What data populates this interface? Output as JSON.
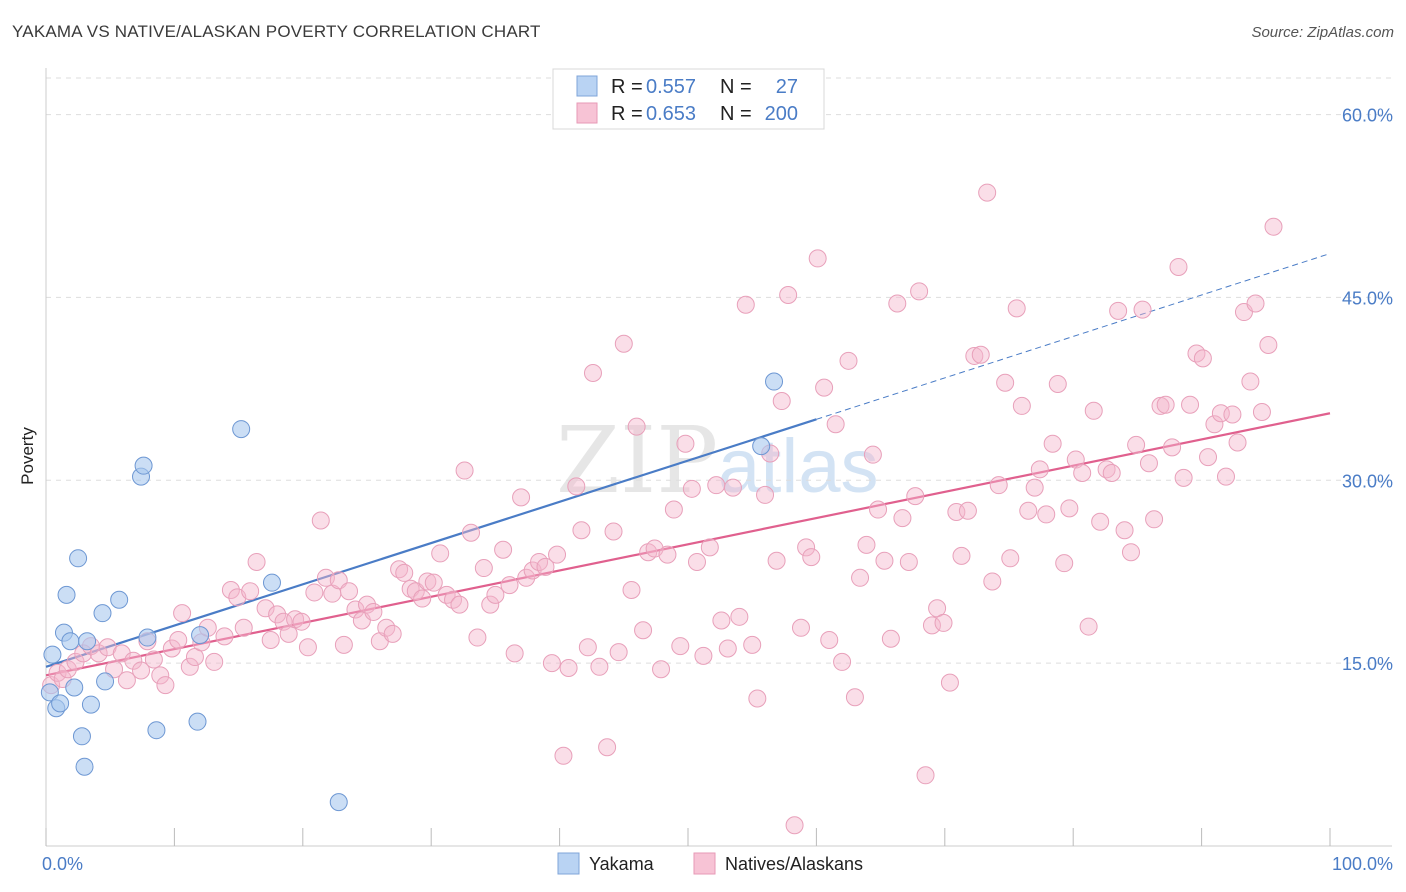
{
  "title": "YAKAMA VS NATIVE/ALASKAN POVERTY CORRELATION CHART",
  "source": "Source: ZipAtlas.com",
  "colors": {
    "yakama": "#4a7cc6",
    "yakama_fill": "#a9c8ef",
    "natives": "#e0608e",
    "natives_fill": "#f5b6cb",
    "axis_text": "#4a7cc6",
    "grid": "#dddddd"
  },
  "legend": {
    "rows": [
      {
        "r_label": "R =",
        "r_value": "0.557",
        "n_label": "N =",
        "n_value": "27"
      },
      {
        "r_label": "R =",
        "r_value": "0.653",
        "n_label": "N =",
        "n_value": "200"
      }
    ]
  },
  "bottom_legend": [
    "Yakama",
    "Natives/Alaskans"
  ],
  "watermark": {
    "zip": "ZIP",
    "atlas": "atlas"
  },
  "chart_data": {
    "type": "scatter",
    "xlabel": "",
    "ylabel": "Poverty",
    "xlim": [
      0,
      100
    ],
    "ylim": [
      0,
      63
    ],
    "x_tick_labels": [
      "0.0%",
      "100.0%"
    ],
    "y_ticks": [
      15,
      30,
      45,
      60
    ],
    "y_tick_labels": [
      "15.0%",
      "30.0%",
      "45.0%",
      "60.0%"
    ],
    "grid": true,
    "legend_position": "top-center",
    "series": [
      {
        "name": "Yakama",
        "trend": {
          "x0": 0,
          "y0": 14.7,
          "x1": 60,
          "y1": 35.0,
          "dash_to_x": 100,
          "dash_to_y": 48.6
        },
        "points": [
          [
            0.3,
            12.6
          ],
          [
            0.5,
            15.7
          ],
          [
            0.8,
            11.3
          ],
          [
            1.1,
            11.7
          ],
          [
            1.4,
            17.5
          ],
          [
            1.6,
            20.6
          ],
          [
            1.9,
            16.8
          ],
          [
            2.2,
            13.0
          ],
          [
            2.5,
            23.6
          ],
          [
            2.8,
            9.0
          ],
          [
            3.0,
            6.5
          ],
          [
            3.2,
            16.8
          ],
          [
            3.5,
            11.6
          ],
          [
            4.4,
            19.1
          ],
          [
            4.6,
            13.5
          ],
          [
            5.7,
            20.2
          ],
          [
            7.4,
            30.3
          ],
          [
            7.6,
            31.2
          ],
          [
            7.9,
            17.1
          ],
          [
            8.6,
            9.5
          ],
          [
            11.8,
            10.2
          ],
          [
            12.0,
            17.3
          ],
          [
            15.2,
            34.2
          ],
          [
            17.6,
            21.6
          ],
          [
            22.8,
            3.6
          ],
          [
            55.7,
            32.8
          ],
          [
            56.7,
            38.1
          ]
        ]
      },
      {
        "name": "Natives/Alaskans",
        "trend": {
          "x0": 0,
          "y0": 14.0,
          "x1": 100,
          "y1": 35.5
        },
        "points": [
          [
            0.4,
            13.2
          ],
          [
            0.9,
            14.2
          ],
          [
            1.3,
            13.7
          ],
          [
            1.7,
            14.5
          ],
          [
            2.3,
            15.1
          ],
          [
            2.9,
            15.8
          ],
          [
            3.5,
            16.4
          ],
          [
            4.1,
            15.8
          ],
          [
            4.8,
            16.3
          ],
          [
            5.3,
            14.5
          ],
          [
            5.9,
            15.8
          ],
          [
            6.3,
            13.6
          ],
          [
            6.8,
            15.2
          ],
          [
            7.4,
            14.4
          ],
          [
            7.9,
            16.8
          ],
          [
            8.4,
            15.3
          ],
          [
            8.9,
            14.0
          ],
          [
            9.3,
            13.2
          ],
          [
            9.8,
            16.2
          ],
          [
            10.3,
            16.9
          ],
          [
            10.6,
            19.1
          ],
          [
            11.2,
            14.7
          ],
          [
            11.6,
            15.5
          ],
          [
            12.1,
            16.7
          ],
          [
            12.6,
            17.9
          ],
          [
            13.1,
            15.1
          ],
          [
            13.9,
            17.2
          ],
          [
            14.4,
            21.0
          ],
          [
            14.9,
            20.4
          ],
          [
            15.4,
            17.9
          ],
          [
            15.9,
            20.9
          ],
          [
            16.4,
            23.3
          ],
          [
            17.1,
            19.5
          ],
          [
            17.5,
            16.9
          ],
          [
            18.0,
            19.0
          ],
          [
            18.5,
            18.4
          ],
          [
            18.9,
            17.4
          ],
          [
            19.4,
            18.6
          ],
          [
            19.9,
            18.4
          ],
          [
            20.4,
            16.3
          ],
          [
            20.9,
            20.8
          ],
          [
            21.4,
            26.7
          ],
          [
            21.8,
            22.0
          ],
          [
            22.3,
            20.7
          ],
          [
            22.8,
            21.8
          ],
          [
            23.2,
            16.5
          ],
          [
            23.6,
            20.9
          ],
          [
            24.1,
            19.4
          ],
          [
            24.6,
            18.5
          ],
          [
            25.0,
            19.8
          ],
          [
            25.5,
            19.2
          ],
          [
            26.0,
            16.8
          ],
          [
            26.5,
            17.9
          ],
          [
            27.0,
            17.4
          ],
          [
            27.5,
            22.7
          ],
          [
            27.9,
            22.4
          ],
          [
            28.4,
            21.1
          ],
          [
            28.8,
            20.9
          ],
          [
            29.3,
            20.3
          ],
          [
            29.7,
            21.7
          ],
          [
            30.2,
            21.6
          ],
          [
            30.7,
            24.0
          ],
          [
            31.2,
            20.6
          ],
          [
            31.7,
            20.2
          ],
          [
            32.2,
            19.8
          ],
          [
            32.6,
            30.8
          ],
          [
            33.1,
            25.7
          ],
          [
            33.6,
            17.1
          ],
          [
            34.1,
            22.8
          ],
          [
            34.6,
            19.8
          ],
          [
            35.0,
            20.6
          ],
          [
            35.6,
            24.3
          ],
          [
            36.1,
            21.4
          ],
          [
            36.5,
            15.8
          ],
          [
            37.0,
            28.6
          ],
          [
            37.4,
            22.0
          ],
          [
            37.9,
            22.6
          ],
          [
            38.4,
            23.3
          ],
          [
            38.9,
            22.9
          ],
          [
            39.4,
            15.0
          ],
          [
            39.8,
            23.9
          ],
          [
            40.3,
            7.4
          ],
          [
            40.7,
            14.6
          ],
          [
            41.3,
            29.5
          ],
          [
            41.7,
            25.9
          ],
          [
            42.2,
            16.3
          ],
          [
            42.6,
            38.8
          ],
          [
            43.1,
            14.7
          ],
          [
            43.7,
            8.1
          ],
          [
            44.2,
            25.8
          ],
          [
            44.6,
            15.9
          ],
          [
            45.0,
            41.2
          ],
          [
            45.6,
            21.0
          ],
          [
            46.0,
            34.4
          ],
          [
            46.5,
            17.7
          ],
          [
            46.9,
            24.1
          ],
          [
            47.4,
            24.4
          ],
          [
            47.9,
            14.5
          ],
          [
            48.4,
            23.9
          ],
          [
            48.9,
            27.6
          ],
          [
            49.4,
            16.4
          ],
          [
            49.8,
            33.0
          ],
          [
            50.3,
            29.3
          ],
          [
            50.7,
            23.3
          ],
          [
            51.2,
            15.6
          ],
          [
            51.7,
            24.5
          ],
          [
            52.2,
            29.6
          ],
          [
            52.6,
            18.5
          ],
          [
            53.1,
            16.2
          ],
          [
            53.5,
            29.4
          ],
          [
            54.0,
            18.8
          ],
          [
            54.5,
            44.4
          ],
          [
            55.0,
            16.5
          ],
          [
            55.4,
            12.1
          ],
          [
            56.0,
            28.8
          ],
          [
            56.4,
            32.2
          ],
          [
            56.9,
            23.4
          ],
          [
            57.3,
            36.5
          ],
          [
            57.8,
            45.2
          ],
          [
            58.3,
            1.7
          ],
          [
            58.8,
            17.9
          ],
          [
            59.2,
            24.5
          ],
          [
            59.6,
            23.7
          ],
          [
            60.1,
            48.2
          ],
          [
            60.6,
            37.6
          ],
          [
            61.0,
            16.9
          ],
          [
            61.5,
            34.6
          ],
          [
            62.0,
            15.1
          ],
          [
            62.5,
            39.8
          ],
          [
            63.0,
            12.2
          ],
          [
            63.4,
            22.0
          ],
          [
            63.9,
            24.7
          ],
          [
            64.4,
            32.1
          ],
          [
            64.8,
            27.6
          ],
          [
            65.3,
            23.4
          ],
          [
            65.8,
            17.0
          ],
          [
            66.3,
            44.5
          ],
          [
            66.7,
            26.9
          ],
          [
            67.2,
            23.3
          ],
          [
            67.7,
            28.7
          ],
          [
            68.0,
            45.5
          ],
          [
            68.5,
            5.8
          ],
          [
            69.0,
            18.1
          ],
          [
            69.4,
            19.5
          ],
          [
            69.9,
            18.3
          ],
          [
            70.4,
            13.4
          ],
          [
            70.9,
            27.4
          ],
          [
            71.3,
            23.8
          ],
          [
            71.8,
            27.5
          ],
          [
            72.3,
            40.2
          ],
          [
            72.8,
            40.3
          ],
          [
            73.3,
            53.6
          ],
          [
            73.7,
            21.7
          ],
          [
            74.2,
            29.6
          ],
          [
            74.7,
            38.0
          ],
          [
            75.1,
            23.6
          ],
          [
            75.6,
            44.1
          ],
          [
            76.0,
            36.1
          ],
          [
            76.5,
            27.5
          ],
          [
            77.0,
            29.4
          ],
          [
            77.4,
            30.9
          ],
          [
            77.9,
            27.2
          ],
          [
            78.4,
            33.0
          ],
          [
            78.8,
            37.9
          ],
          [
            79.3,
            23.2
          ],
          [
            79.7,
            27.7
          ],
          [
            80.2,
            31.7
          ],
          [
            80.7,
            30.6
          ],
          [
            81.2,
            18.0
          ],
          [
            81.6,
            35.7
          ],
          [
            82.1,
            26.6
          ],
          [
            82.6,
            30.9
          ],
          [
            83.0,
            30.6
          ],
          [
            83.5,
            43.9
          ],
          [
            84.0,
            25.9
          ],
          [
            84.5,
            24.1
          ],
          [
            84.9,
            32.9
          ],
          [
            85.4,
            44.0
          ],
          [
            85.9,
            31.4
          ],
          [
            86.3,
            26.8
          ],
          [
            86.8,
            36.1
          ],
          [
            87.2,
            36.2
          ],
          [
            87.7,
            32.7
          ],
          [
            88.2,
            47.5
          ],
          [
            88.6,
            30.2
          ],
          [
            89.1,
            36.2
          ],
          [
            89.6,
            40.4
          ],
          [
            90.1,
            40.0
          ],
          [
            90.5,
            31.9
          ],
          [
            91.0,
            34.6
          ],
          [
            91.5,
            35.5
          ],
          [
            91.9,
            30.3
          ],
          [
            92.4,
            35.4
          ],
          [
            92.8,
            33.1
          ],
          [
            93.3,
            43.8
          ],
          [
            93.8,
            38.1
          ],
          [
            94.2,
            44.5
          ],
          [
            94.7,
            35.6
          ],
          [
            95.2,
            41.1
          ],
          [
            95.6,
            50.8
          ]
        ]
      }
    ]
  }
}
